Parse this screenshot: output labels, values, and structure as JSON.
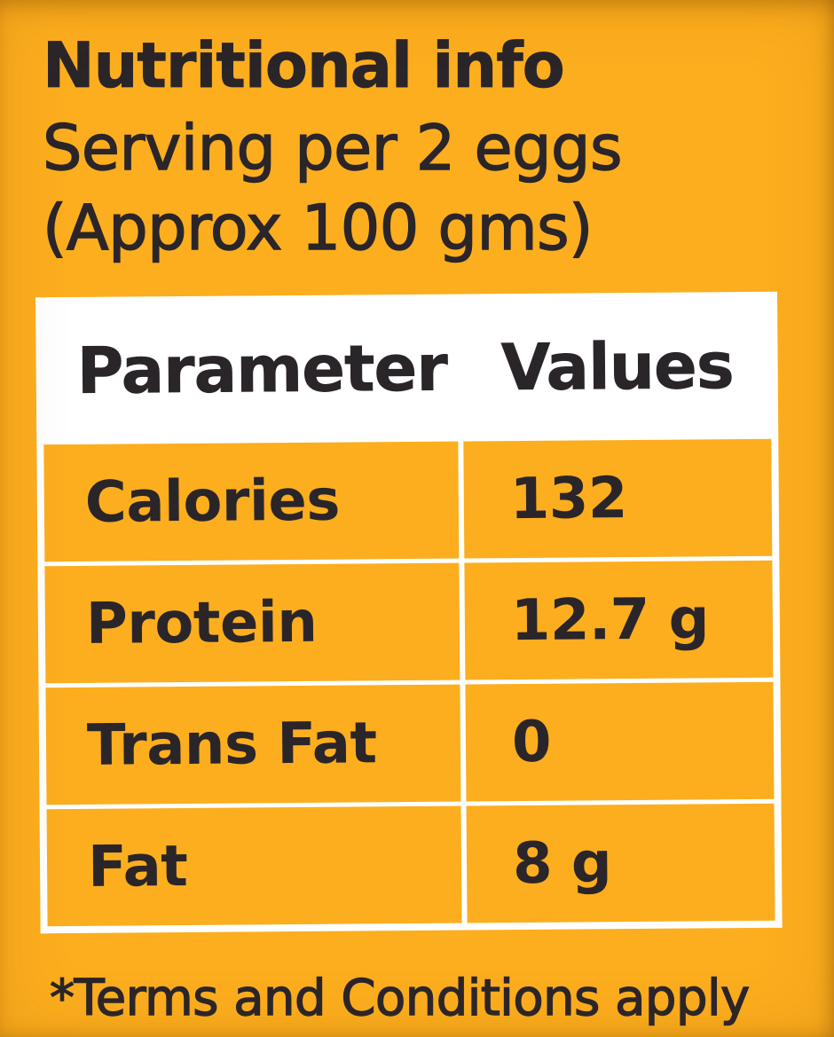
{
  "colors": {
    "background": "#FCAE1E",
    "text": "#2A2529",
    "table_header_background": "#FFFFFF",
    "table_lines": "#FFFFFF"
  },
  "header": {
    "title": "Nutritional info",
    "serving_line_1": "Serving per 2 eggs",
    "serving_line_2": "(Approx 100 gms)"
  },
  "table": {
    "column_headers": [
      "Parameter",
      "Values"
    ],
    "rows": [
      {
        "parameter": "Calories",
        "value": "132"
      },
      {
        "parameter": "Protein",
        "value": "12.7 g"
      },
      {
        "parameter": "Trans Fat",
        "value": "0"
      },
      {
        "parameter": "Fat",
        "value": "8 g"
      }
    ]
  },
  "footer": {
    "note": "*Terms and Conditions apply"
  },
  "chart_data": {
    "type": "table",
    "title": "Nutritional info",
    "subtitle": "Serving per 2 eggs (Approx 100 gms)",
    "columns": [
      "Parameter",
      "Values"
    ],
    "rows": [
      [
        "Calories",
        "132"
      ],
      [
        "Protein",
        "12.7 g"
      ],
      [
        "Trans Fat",
        "0"
      ],
      [
        "Fat",
        "8 g"
      ]
    ],
    "footnote": "*Terms and Conditions apply"
  }
}
